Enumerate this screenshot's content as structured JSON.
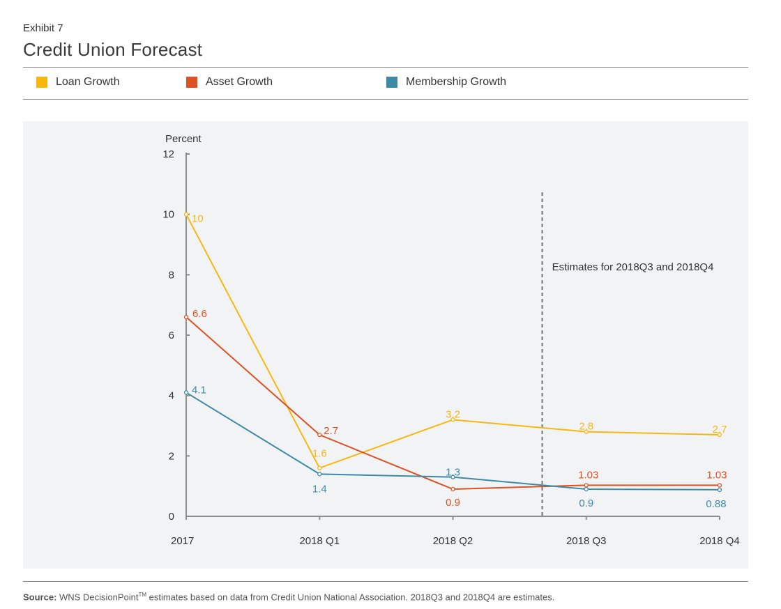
{
  "header": {
    "exhibit": "Exhibit 7",
    "title": "Credit Union Forecast"
  },
  "legend": [
    {
      "label": "Loan Growth",
      "color": "#f6b80f"
    },
    {
      "label": "Asset Growth",
      "color": "#dd5224"
    },
    {
      "label": "Membership Growth",
      "color": "#3d8aa5"
    }
  ],
  "annotation": "Estimates for 2018Q3 and 2018Q4",
  "source": {
    "label": "Source:",
    "text_before_tm": " WNS DecisionPoint",
    "tm": "TM",
    "text_after_tm": " estimates based on data from Credit Union National Association. 2018Q3 and 2018Q4 are estimates."
  },
  "chart_data": {
    "type": "line",
    "ylabel": "Percent",
    "ylim": [
      0,
      12
    ],
    "yticks": [
      0,
      2,
      4,
      6,
      8,
      10,
      12
    ],
    "categories": [
      "2017",
      "2018 Q1",
      "2018 Q2",
      "2018 Q3",
      "2018 Q4"
    ],
    "estimate_divider_after": "2018 Q2",
    "series": [
      {
        "name": "Loan Growth",
        "color": "#f6b80f",
        "values": [
          10,
          1.6,
          3.2,
          2.8,
          2.7
        ],
        "labels": [
          "10",
          "1.6",
          "3.2",
          "2.8",
          "2.7"
        ]
      },
      {
        "name": "Asset Growth",
        "color": "#dd5224",
        "values": [
          6.6,
          2.7,
          0.9,
          1.03,
          1.03
        ],
        "labels": [
          "6.6",
          "2.7",
          "0.9",
          "1.03",
          "1.03"
        ]
      },
      {
        "name": "Membership Growth",
        "color": "#3d8aa5",
        "values": [
          4.1,
          1.4,
          1.3,
          0.9,
          0.88
        ],
        "labels": [
          "4.1",
          "1.4",
          "1.3",
          "0.9",
          "0.88"
        ]
      }
    ]
  }
}
